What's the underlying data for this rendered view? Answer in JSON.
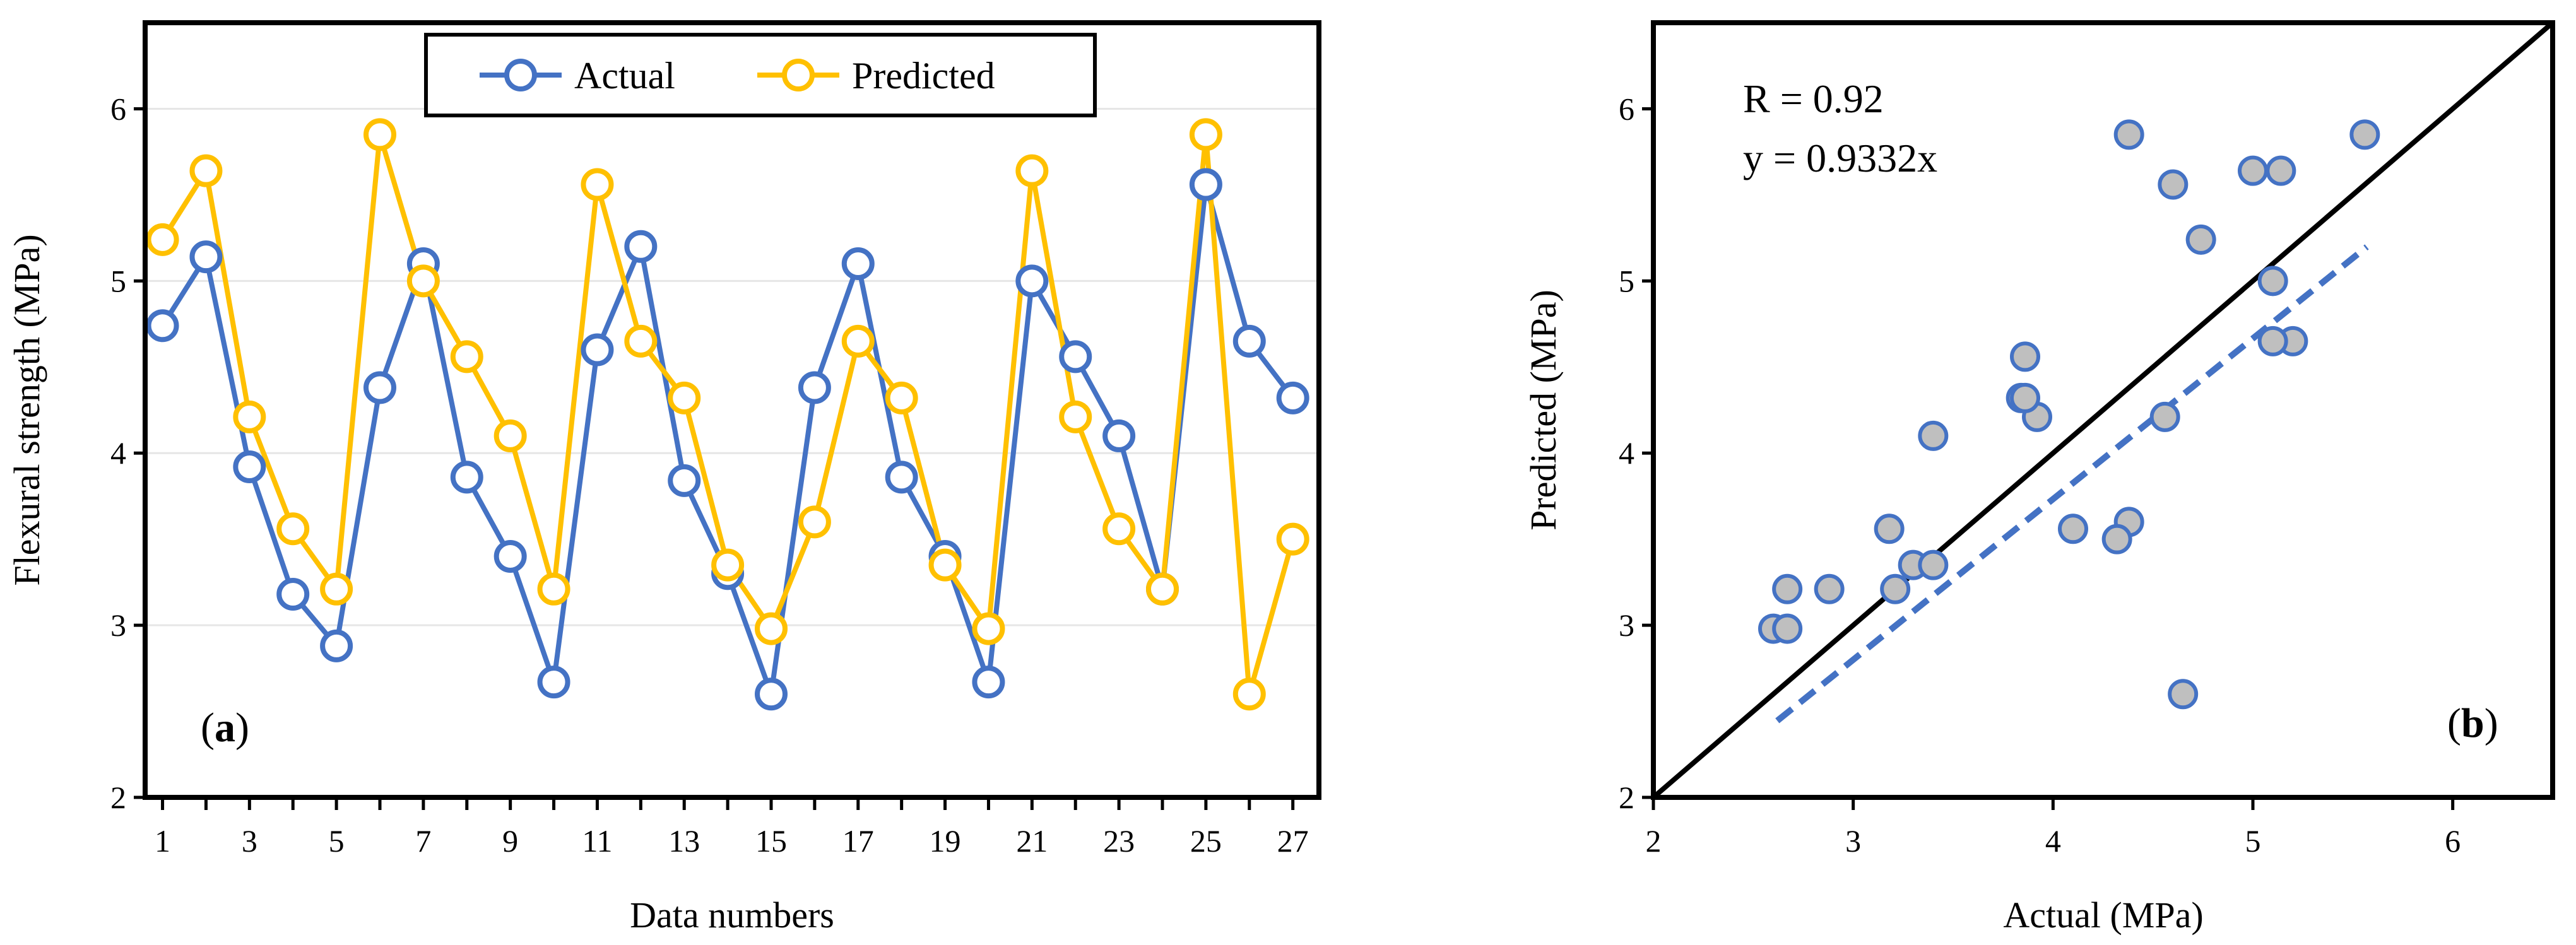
{
  "chart_data": [
    {
      "panel": "a",
      "type": "line",
      "panel_label": "(a)",
      "panel_label_letter": "a",
      "xlabel": "Data numbers",
      "ylabel": "Flexural strength  (MPa)",
      "xlim": [
        0.6,
        27.6
      ],
      "ylim": [
        2,
        6.5
      ],
      "xticks": [
        1,
        3,
        5,
        7,
        9,
        11,
        13,
        15,
        17,
        19,
        21,
        23,
        25,
        27
      ],
      "yticks": [
        2,
        3,
        4,
        5,
        6
      ],
      "grid": "horizontal",
      "legend_position": "top-center",
      "x": [
        1,
        2,
        3,
        4,
        5,
        6,
        7,
        8,
        9,
        10,
        11,
        12,
        13,
        14,
        15,
        16,
        17,
        18,
        19,
        20,
        21,
        22,
        23,
        24,
        25,
        26,
        27
      ],
      "series": [
        {
          "name": "Actual",
          "color": "#4472C4",
          "values": [
            4.74,
            5.14,
            3.92,
            3.18,
            2.88,
            4.38,
            5.1,
            3.86,
            3.4,
            2.67,
            4.6,
            5.2,
            3.84,
            3.3,
            2.6,
            4.38,
            5.1,
            3.86,
            3.4,
            2.67,
            5.0,
            4.56,
            4.1,
            3.21,
            5.56,
            4.65,
            4.32
          ]
        },
        {
          "name": "Predicted",
          "color": "#FFC000",
          "values": [
            5.24,
            5.64,
            4.21,
            3.56,
            3.21,
            5.85,
            5.0,
            4.56,
            4.1,
            3.21,
            5.56,
            4.65,
            4.32,
            3.35,
            2.98,
            3.6,
            4.65,
            4.32,
            3.35,
            2.98,
            5.64,
            4.21,
            3.56,
            3.21,
            5.85,
            2.6,
            3.5
          ]
        }
      ]
    },
    {
      "panel": "b",
      "type": "scatter",
      "panel_label": "(b)",
      "panel_label_letter": "b",
      "xlabel": "Actual (MPa)",
      "ylabel": "Predicted (MPa)",
      "xlim": [
        2,
        6.5
      ],
      "ylim": [
        2,
        6.5
      ],
      "xticks": [
        2,
        3,
        4,
        5,
        6
      ],
      "yticks": [
        2,
        3,
        4,
        5,
        6
      ],
      "annotations": [
        "R = 0.92",
        "y = 0.9332x"
      ],
      "identity_line": true,
      "fit": {
        "slope": 0.9332,
        "x_range": [
          2.62,
          5.57
        ],
        "color": "#4472C4"
      },
      "marker_fill": "#BFBFBF",
      "marker_edge": "#4472C4",
      "points": [
        [
          4.74,
          5.24
        ],
        [
          5.14,
          5.64
        ],
        [
          3.92,
          4.21
        ],
        [
          3.18,
          3.56
        ],
        [
          2.88,
          3.21
        ],
        [
          4.38,
          5.85
        ],
        [
          5.1,
          5.0
        ],
        [
          3.86,
          4.56
        ],
        [
          3.4,
          4.1
        ],
        [
          2.67,
          3.21
        ],
        [
          4.6,
          5.56
        ],
        [
          5.2,
          4.65
        ],
        [
          3.84,
          4.32
        ],
        [
          3.3,
          3.35
        ],
        [
          2.6,
          2.98
        ],
        [
          4.38,
          3.6
        ],
        [
          5.1,
          4.65
        ],
        [
          3.86,
          4.32
        ],
        [
          3.4,
          3.35
        ],
        [
          2.67,
          2.98
        ],
        [
          5.0,
          5.64
        ],
        [
          4.56,
          4.21
        ],
        [
          4.1,
          3.56
        ],
        [
          3.21,
          3.21
        ],
        [
          5.56,
          5.85
        ],
        [
          4.65,
          2.6
        ],
        [
          4.32,
          3.5
        ]
      ]
    }
  ]
}
